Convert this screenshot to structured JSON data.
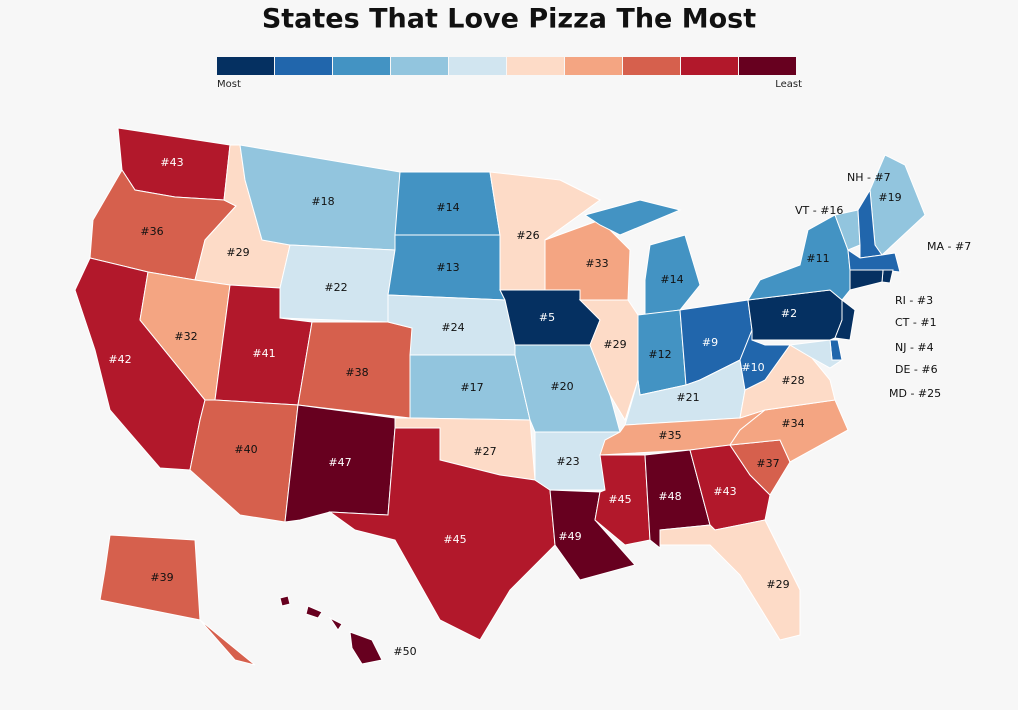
{
  "title": "States That Love Pizza The Most",
  "legend": {
    "colors": [
      "#053061",
      "#2166ac",
      "#4393c3",
      "#92c5de",
      "#d1e5f0",
      "#fddbc7",
      "#f4a582",
      "#d6604d",
      "#b2182b",
      "#67001f"
    ],
    "low_label": "Most",
    "high_label": "Least"
  },
  "states": [
    {
      "label": "#43",
      "color": "#b2182b"
    },
    {
      "label": "#36",
      "color": "#d6604d"
    },
    {
      "label": "#42",
      "color": "#b2182b"
    },
    {
      "label": "#29",
      "color": "#fddbc7"
    },
    {
      "label": "#32",
      "color": "#f4a582"
    },
    {
      "label": "#18",
      "color": "#92c5de"
    },
    {
      "label": "#22",
      "color": "#d1e5f0"
    },
    {
      "label": "#41",
      "color": "#b2182b"
    },
    {
      "label": "#40",
      "color": "#d6604d"
    },
    {
      "label": "#38",
      "color": "#d6604d"
    },
    {
      "label": "#47",
      "color": "#67001f"
    },
    {
      "label": "#14",
      "color": "#4393c3"
    },
    {
      "label": "#13",
      "color": "#4393c3"
    },
    {
      "label": "#24",
      "color": "#d1e5f0"
    },
    {
      "label": "#17",
      "color": "#92c5de"
    },
    {
      "label": "#27",
      "color": "#fddbc7"
    },
    {
      "label": "#45",
      "color": "#b2182b"
    },
    {
      "label": "#26",
      "color": "#fddbc7"
    },
    {
      "label": "#5",
      "color": "#053061"
    },
    {
      "label": "#20",
      "color": "#92c5de"
    },
    {
      "label": "#23",
      "color": "#d1e5f0"
    },
    {
      "label": "#49",
      "color": "#67001f"
    },
    {
      "label": "#33",
      "color": "#f4a582"
    },
    {
      "label": "#29",
      "color": "#fddbc7"
    },
    {
      "label": "#14",
      "color": "#4393c3"
    },
    {
      "label": "#12",
      "color": "#4393c3"
    },
    {
      "label": "#9",
      "color": "#2166ac"
    },
    {
      "label": "#21",
      "color": "#d1e5f0"
    },
    {
      "label": "#35",
      "color": "#f4a582"
    },
    {
      "label": "#45",
      "color": "#b2182b"
    },
    {
      "label": "#48",
      "color": "#67001f"
    },
    {
      "label": "#43",
      "color": "#b2182b"
    },
    {
      "label": "#29",
      "color": "#fddbc7"
    },
    {
      "label": "#37",
      "color": "#d6604d"
    },
    {
      "label": "#34",
      "color": "#f4a582"
    },
    {
      "label": "#28",
      "color": "#fddbc7"
    },
    {
      "label": "#10",
      "color": "#2166ac"
    },
    {
      "label": "#2",
      "color": "#053061"
    },
    {
      "label": "#11",
      "color": "#4393c3"
    },
    {
      "label": "#19",
      "color": "#92c5de"
    },
    {
      "label": "#39",
      "color": "#d6604d"
    },
    {
      "label": "#50",
      "color": "#67001f"
    },
    {
      "callout": "VT - #16",
      "color": "#92c5de"
    },
    {
      "callout": "NH - #7",
      "color": "#2166ac"
    },
    {
      "callout": "MA - #7",
      "color": "#2166ac"
    },
    {
      "callout": "RI - #3",
      "color": "#053061"
    },
    {
      "callout": "CT - #1",
      "color": "#053061"
    },
    {
      "callout": "NJ - #4",
      "color": "#053061"
    },
    {
      "callout": "DE - #6",
      "color": "#2166ac"
    },
    {
      "callout": "MD - #25",
      "color": "#d1e5f0"
    }
  ]
}
